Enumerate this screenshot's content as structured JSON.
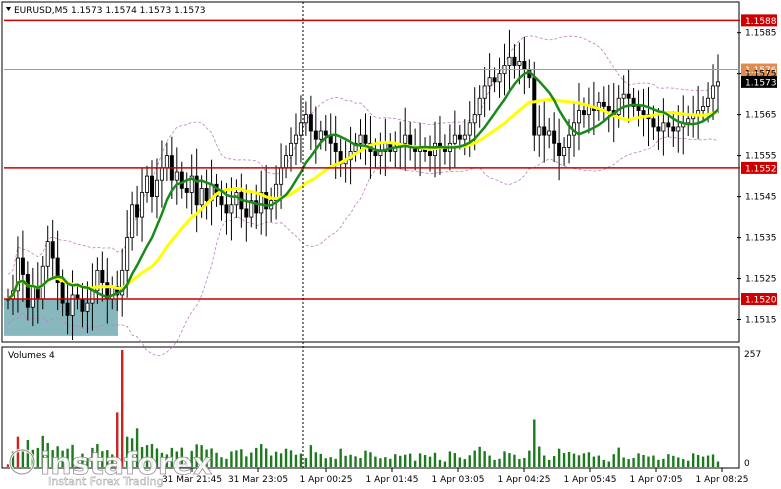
{
  "chart_data": [
    {
      "type": "candlestick",
      "title": "EURUSD,M5  1.1573 1.1574 1.1573 1.1573",
      "symbol": "EURUSD",
      "timeframe": "M5",
      "ylim": [
        1.151,
        1.1592
      ],
      "yticks": [
        "1.1585",
        "1.1575",
        "1.1565",
        "1.1555",
        "1.1545",
        "1.1535",
        "1.1525",
        "1.1515"
      ],
      "xlabels": [
        "31 Mar 21:45",
        "31 Mar 23:05",
        "1 Apr 00:25",
        "1 Apr 01:45",
        "1 Apr 03:05",
        "1 Apr 04:25",
        "1 Apr 05:45",
        "1 Apr 07:05",
        "1 Apr 08:25"
      ],
      "current_price": "1.1573",
      "levels": [
        {
          "label": "1.1588",
          "value": 1.1588,
          "color": "#cc0000"
        },
        {
          "label": "1.1576",
          "value": 1.1576,
          "color": "#e08a4c"
        },
        {
          "label": "1.1552",
          "value": 1.1552,
          "color": "#cc0000"
        },
        {
          "label": "1.1520",
          "value": 1.152,
          "color": "#cc0000"
        }
      ],
      "close": [
        1.152,
        1.1522,
        1.153,
        1.1526,
        1.1518,
        1.1523,
        1.152,
        1.1528,
        1.1534,
        1.153,
        1.1524,
        1.1519,
        1.1516,
        1.1521,
        1.152,
        1.1517,
        1.1519,
        1.1522,
        1.1527,
        1.1524,
        1.152,
        1.1523,
        1.1521,
        1.1527,
        1.1535,
        1.1543,
        1.154,
        1.1546,
        1.155,
        1.1545,
        1.1549,
        1.1552,
        1.1555,
        1.1549,
        1.1551,
        1.1547,
        1.1546,
        1.155,
        1.1543,
        1.1547,
        1.1544,
        1.1548,
        1.1545,
        1.1543,
        1.1541,
        1.1543,
        1.1546,
        1.1542,
        1.154,
        1.1544,
        1.1541,
        1.1546,
        1.1542,
        1.1544,
        1.1548,
        1.1552,
        1.1555,
        1.1558,
        1.156,
        1.1563,
        1.1565,
        1.1561,
        1.1559,
        1.1561,
        1.156,
        1.1558,
        1.1556,
        1.1553,
        1.1554,
        1.1556,
        1.1558,
        1.156,
        1.1558,
        1.1556,
        1.1555,
        1.1556,
        1.1558,
        1.1556,
        1.1557,
        1.1558,
        1.156,
        1.1557,
        1.1556,
        1.1557,
        1.1556,
        1.1555,
        1.1558,
        1.1557,
        1.1556,
        1.1558,
        1.156,
        1.1559,
        1.156,
        1.1563,
        1.1565,
        1.1569,
        1.1572,
        1.1574,
        1.1573,
        1.1575,
        1.1577,
        1.1579,
        1.1577,
        1.1578,
        1.1576,
        1.1574,
        1.156,
        1.1562,
        1.156,
        1.1561,
        1.1558,
        1.1555,
        1.1557,
        1.156,
        1.1563,
        1.1566,
        1.1565,
        1.1567,
        1.1566,
        1.1568,
        1.1567,
        1.1566,
        1.1565,
        1.1569,
        1.157,
        1.1569,
        1.1567,
        1.1566,
        1.1565,
        1.1564,
        1.1562,
        1.1561,
        1.1563,
        1.1562,
        1.1561,
        1.1562,
        1.1563,
        1.1564,
        1.1565,
        1.1566,
        1.1567,
        1.1569,
        1.1572,
        1.1573
      ],
      "volume_panel": {
        "label": "Volumes 4",
        "ylim": [
          0,
          257
        ],
        "yticks": [
          "257",
          "0"
        ]
      },
      "watermark": {
        "brand": "instaforex",
        "tagline": "Instant Forex Trading"
      },
      "colors": {
        "up": "#2b6e2b",
        "down": "#000000",
        "ma_fast": "#1a8a1a",
        "ma_slow": "#ffff00",
        "bollinger": "#c080c0",
        "volume": "#1c7a1c",
        "volume_spike": "#cc2222",
        "highlight_box": "#5fa0a8"
      }
    }
  ]
}
